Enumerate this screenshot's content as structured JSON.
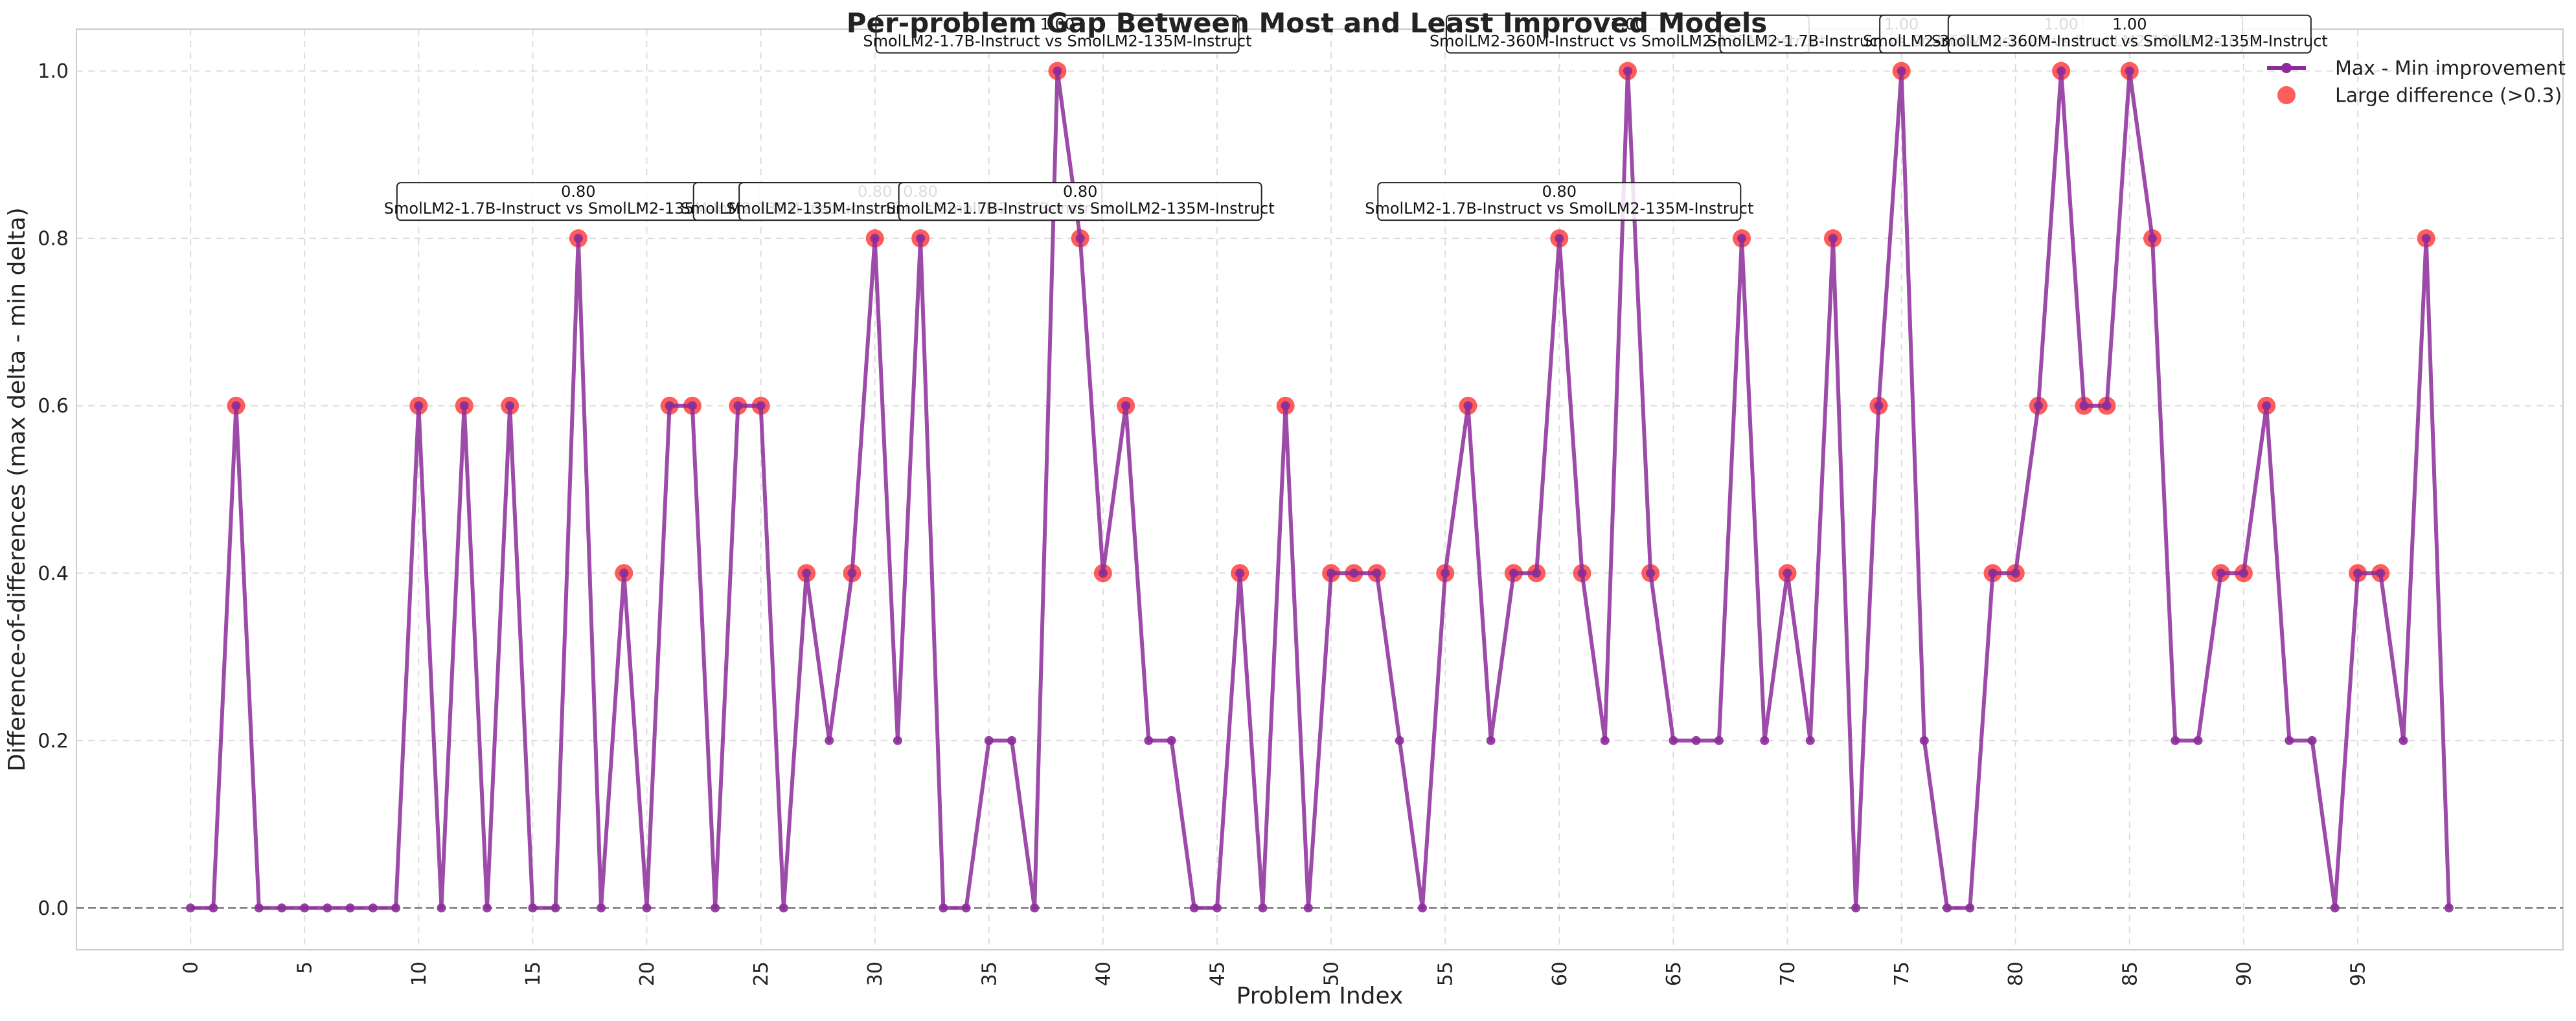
{
  "chart_data": {
    "type": "line",
    "title": "Per-problem Gap Between Most and Least Improved Models",
    "xlabel": "Problem Index",
    "ylabel": "Difference-of-differences (max delta - min delta)",
    "xlim": [
      -5,
      104
    ],
    "ylim": [
      -0.05,
      1.05
    ],
    "x_ticks": [
      0,
      5,
      10,
      15,
      20,
      25,
      30,
      35,
      40,
      45,
      50,
      55,
      60,
      65,
      70,
      75,
      80,
      85,
      90,
      95
    ],
    "y_ticks": [
      "0.0",
      "0.2",
      "0.4",
      "0.6",
      "0.8",
      "1.0"
    ],
    "grid": true,
    "legend_position": "top-right",
    "reference_line": {
      "y": 0.0,
      "style": "dashed"
    },
    "series": [
      {
        "name": "Max - Min improvement",
        "color": "#8b2c99",
        "values": [
          0,
          0,
          0.6,
          0,
          0,
          0,
          0,
          0,
          0,
          0,
          0.6,
          0,
          0.6,
          0,
          0.6,
          0,
          0,
          0.8,
          0,
          0.4,
          0,
          0.6,
          0.6,
          0,
          0.6,
          0.6,
          0,
          0.4,
          0.2,
          0.4,
          0.8,
          0.2,
          0.8,
          0,
          0,
          0.2,
          0.2,
          0,
          1.0,
          0.8,
          0.4,
          0.6,
          0.2,
          0.2,
          0,
          0,
          0.4,
          0,
          0.6,
          0,
          0.4,
          0.4,
          0.4,
          0.2,
          0,
          0.4,
          0.6,
          0.2,
          0.4,
          0.4,
          0.8,
          0.4,
          0.2,
          1.0,
          0.4,
          0.2,
          0.2,
          0.2,
          0.8,
          0.2,
          0.4,
          0.2,
          0.8,
          0,
          0.6,
          1.0,
          0.2,
          0,
          0,
          0.4,
          0.4,
          0.6,
          1.0,
          0.6,
          0.6,
          1.0,
          0.8,
          0.2,
          0.2,
          0.4,
          0.4,
          0.6,
          0.2,
          0.2,
          0,
          0.4,
          0.4,
          0.2,
          0.8,
          0
        ]
      },
      {
        "name": "Large difference (>0.3)",
        "color": "#ff3333",
        "threshold": 0.3
      }
    ],
    "annotations": [
      {
        "x": 17,
        "value_label": "0.80",
        "pair_label": "SmolLM2-1.7B-Instruct vs SmolLM2-135M-Instruct"
      },
      {
        "x": 30,
        "value_label": "0.80",
        "pair_label": "SmolLM2-135M-Instruct vs SmolLM2-1.7B-Instruct"
      },
      {
        "x": 32,
        "value_label": "0.80",
        "pair_label": "SmolLM2-135M-Instruct vs SmolLM2-1.7B-Instruct"
      },
      {
        "x": 38,
        "value_label": "1.00",
        "pair_label": "SmolLM2-1.7B-Instruct vs SmolLM2-135M-Instruct"
      },
      {
        "x": 39,
        "value_label": "0.80",
        "pair_label": "SmolLM2-1.7B-Instruct vs SmolLM2-135M-Instruct"
      },
      {
        "x": 60,
        "value_label": "0.80",
        "pair_label": "SmolLM2-1.7B-Instruct vs SmolLM2-135M-Instruct"
      },
      {
        "x": 63,
        "value_label": "1.00",
        "pair_label": "SmolLM2-360M-Instruct vs SmolLM2-135M-Instruct"
      },
      {
        "x": 75,
        "value_label": "1.00",
        "pair_label": "SmolLM2-1.7B-Instruct vs SmolLM2-135M-Instruct"
      },
      {
        "x": 82,
        "value_label": "1.00",
        "pair_label": "SmolLM2-360M-Instruct vs SmolLM2-135M-Instruct"
      },
      {
        "x": 85,
        "value_label": "1.00",
        "pair_label": "SmolLM2-360M-Instruct vs SmolLM2-135M-Instruct"
      }
    ]
  }
}
